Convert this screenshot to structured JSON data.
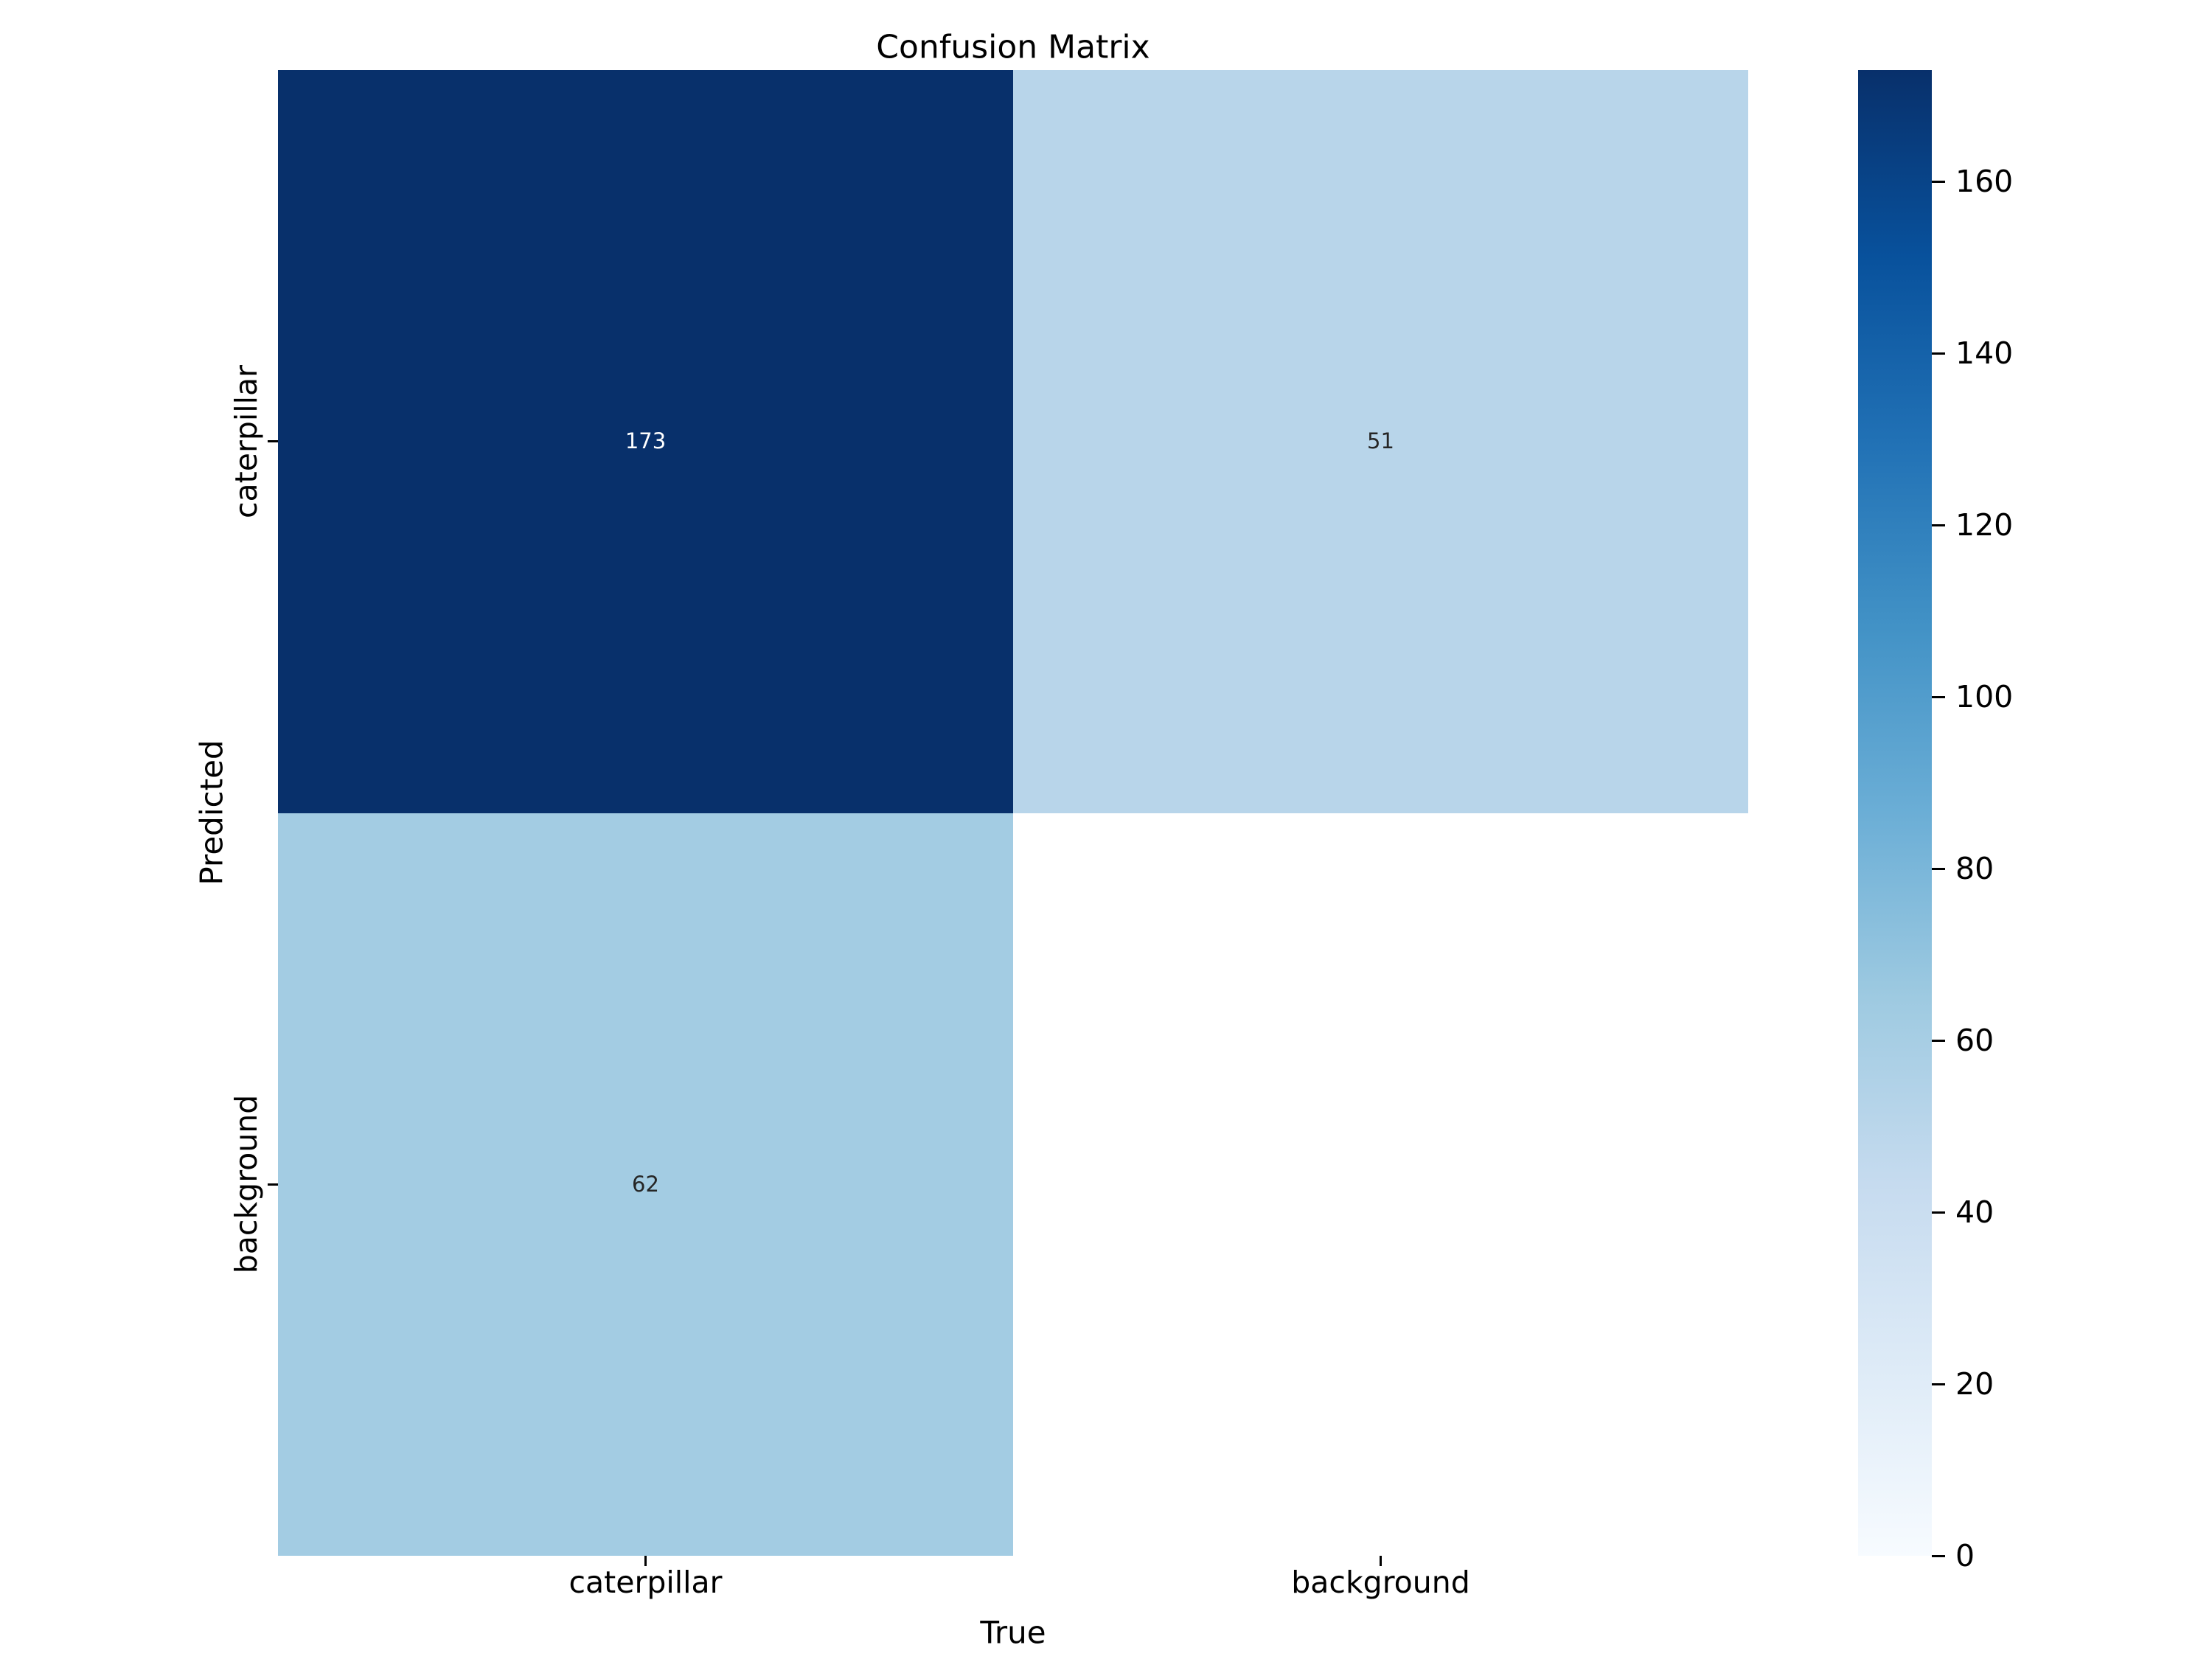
{
  "chart_data": {
    "type": "heatmap",
    "title": "Confusion Matrix",
    "xlabel": "True",
    "ylabel": "Predicted",
    "x_tick_labels": [
      "caterpillar",
      "background"
    ],
    "y_tick_labels": [
      "caterpillar",
      "background"
    ],
    "values": [
      [
        173,
        51
      ],
      [
        62,
        null
      ]
    ],
    "annotations": [
      [
        "173",
        "51"
      ],
      [
        "62",
        ""
      ]
    ],
    "cell_colors": [
      [
        "#08306b",
        "#b8d5ea"
      ],
      [
        "#a3cce3",
        "#ffffff"
      ]
    ],
    "annotation_colors": [
      [
        "#ffffff",
        "#262626"
      ],
      [
        "#262626",
        "#262626"
      ]
    ],
    "colormap": "Blues",
    "vmin": 0,
    "vmax": 173,
    "grid": false,
    "legend_position": "right-colorbar",
    "colorbar": {
      "tick_values": [
        160,
        140,
        120,
        100,
        80,
        60,
        40,
        20,
        0
      ],
      "tick_labels": [
        "160",
        "140",
        "120",
        "100",
        "80",
        "60",
        "40",
        "20",
        "0"
      ],
      "gradient_stops_top_to_bottom": [
        {
          "pos": 0.0,
          "color": "#08306b"
        },
        {
          "pos": 0.125,
          "color": "#08519c"
        },
        {
          "pos": 0.25,
          "color": "#2171b5"
        },
        {
          "pos": 0.375,
          "color": "#4292c6"
        },
        {
          "pos": 0.5,
          "color": "#6baed6"
        },
        {
          "pos": 0.625,
          "color": "#9ecae1"
        },
        {
          "pos": 0.75,
          "color": "#c6dbef"
        },
        {
          "pos": 0.875,
          "color": "#deebf7"
        },
        {
          "pos": 1.0,
          "color": "#f7fbff"
        }
      ]
    }
  }
}
